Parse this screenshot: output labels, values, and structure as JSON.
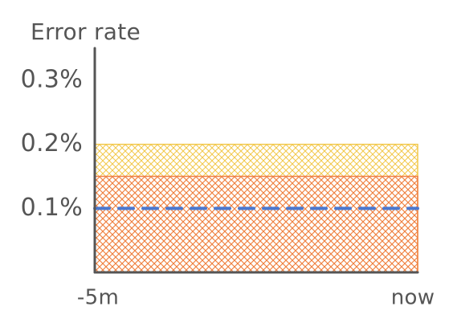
{
  "chart_data": {
    "type": "area",
    "ylabel": "Error rate",
    "x_ticks": [
      "-5m",
      "now"
    ],
    "y_ticks": [
      {
        "value": 0.1,
        "label": "0.1%"
      },
      {
        "value": 0.2,
        "label": "0.2%"
      },
      {
        "value": 0.3,
        "label": "0.3%"
      }
    ],
    "ylim": [
      0,
      0.3
    ],
    "series": [
      {
        "type": "band",
        "from": 0,
        "to": 0.2,
        "color": "#f2c84b",
        "fill": "hatched"
      },
      {
        "type": "band",
        "from": 0,
        "to": 0.15,
        "color": "#ef7f45",
        "fill": "hatched"
      },
      {
        "type": "threshold-line",
        "value": 0.1,
        "color": "#4a78d0",
        "style": "dashed"
      }
    ],
    "grid": false,
    "legend": "none"
  }
}
